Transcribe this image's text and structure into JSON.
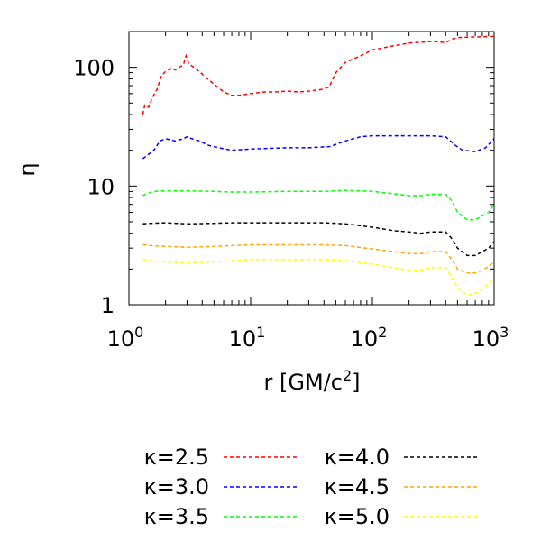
{
  "chart_data": {
    "type": "line",
    "xscale": "log",
    "yscale": "log",
    "xlim": [
      1,
      1000
    ],
    "ylim": [
      1,
      200
    ],
    "xlabel": "r [GM/c",
    "xlabel_sup": "2",
    "xlabel_end": "]",
    "ylabel": "η",
    "xticks": [
      {
        "value": 1,
        "base": "10",
        "exp": "0"
      },
      {
        "value": 10,
        "base": "10",
        "exp": "1"
      },
      {
        "value": 100,
        "base": "10",
        "exp": "2"
      },
      {
        "value": 1000,
        "base": "10",
        "exp": "3"
      }
    ],
    "yticks": [
      {
        "value": 1,
        "label": "1"
      },
      {
        "value": 10,
        "label": "10"
      },
      {
        "value": 100,
        "label": "100"
      }
    ],
    "legend_position": "bottom",
    "series": [
      {
        "name": "κ=2.5",
        "color": "#ff0000",
        "points": [
          [
            1.3,
            40
          ],
          [
            1.35,
            48
          ],
          [
            1.45,
            46
          ],
          [
            1.55,
            55
          ],
          [
            1.7,
            65
          ],
          [
            1.85,
            85
          ],
          [
            2.0,
            92
          ],
          [
            2.2,
            98
          ],
          [
            2.4,
            95
          ],
          [
            2.6,
            100
          ],
          [
            2.8,
            105
          ],
          [
            2.95,
            125
          ],
          [
            3.1,
            108
          ],
          [
            3.4,
            100
          ],
          [
            3.8,
            92
          ],
          [
            4.3,
            82
          ],
          [
            5,
            72
          ],
          [
            6,
            62
          ],
          [
            7,
            58
          ],
          [
            8,
            58
          ],
          [
            10,
            60
          ],
          [
            13,
            62
          ],
          [
            16,
            62
          ],
          [
            20,
            63
          ],
          [
            25,
            62
          ],
          [
            30,
            63
          ],
          [
            38,
            65
          ],
          [
            44,
            68
          ],
          [
            50,
            90
          ],
          [
            60,
            110
          ],
          [
            80,
            125
          ],
          [
            100,
            140
          ],
          [
            150,
            152
          ],
          [
            200,
            160
          ],
          [
            300,
            165
          ],
          [
            400,
            162
          ],
          [
            450,
            172
          ],
          [
            500,
            178
          ],
          [
            700,
            180
          ],
          [
            1000,
            182
          ]
        ]
      },
      {
        "name": "κ=3.0",
        "color": "#0000ff",
        "points": [
          [
            1.3,
            17
          ],
          [
            1.4,
            18
          ],
          [
            1.5,
            19
          ],
          [
            1.6,
            20
          ],
          [
            1.8,
            24
          ],
          [
            2.0,
            25
          ],
          [
            2.4,
            24
          ],
          [
            2.8,
            25
          ],
          [
            3.0,
            26
          ],
          [
            3.3,
            25
          ],
          [
            3.8,
            24
          ],
          [
            4.5,
            22
          ],
          [
            5.5,
            21
          ],
          [
            7,
            20
          ],
          [
            10,
            20.5
          ],
          [
            15,
            20.8
          ],
          [
            20,
            21
          ],
          [
            30,
            21
          ],
          [
            45,
            21.5
          ],
          [
            60,
            24
          ],
          [
            80,
            26
          ],
          [
            100,
            26.5
          ],
          [
            200,
            26.5
          ],
          [
            300,
            26.5
          ],
          [
            400,
            26
          ],
          [
            480,
            22
          ],
          [
            550,
            20
          ],
          [
            700,
            19.5
          ],
          [
            850,
            21
          ],
          [
            1000,
            25
          ]
        ]
      },
      {
        "name": "κ=3.5",
        "color": "#00ff00",
        "points": [
          [
            1.3,
            8.3
          ],
          [
            1.4,
            8.6
          ],
          [
            1.6,
            9.0
          ],
          [
            2,
            9.1
          ],
          [
            3,
            9.1
          ],
          [
            5,
            9.0
          ],
          [
            7,
            8.9
          ],
          [
            10,
            8.9
          ],
          [
            20,
            9.0
          ],
          [
            40,
            9.0
          ],
          [
            60,
            9.2
          ],
          [
            100,
            9.0
          ],
          [
            150,
            8.6
          ],
          [
            200,
            8.3
          ],
          [
            250,
            8.3
          ],
          [
            300,
            8.5
          ],
          [
            400,
            8.5
          ],
          [
            450,
            7.5
          ],
          [
            500,
            6.0
          ],
          [
            600,
            5.2
          ],
          [
            700,
            5.2
          ],
          [
            800,
            5.6
          ],
          [
            900,
            6.0
          ],
          [
            1000,
            7.0
          ]
        ]
      },
      {
        "name": "κ=4.0",
        "color": "#000000",
        "points": [
          [
            1.3,
            4.8
          ],
          [
            1.5,
            4.85
          ],
          [
            2,
            4.9
          ],
          [
            3,
            4.8
          ],
          [
            5,
            4.85
          ],
          [
            7,
            4.9
          ],
          [
            10,
            4.9
          ],
          [
            20,
            4.9
          ],
          [
            40,
            4.9
          ],
          [
            60,
            4.8
          ],
          [
            100,
            4.5
          ],
          [
            150,
            4.2
          ],
          [
            200,
            4.1
          ],
          [
            250,
            4.0
          ],
          [
            300,
            4.1
          ],
          [
            400,
            4.1
          ],
          [
            450,
            3.6
          ],
          [
            500,
            3.0
          ],
          [
            600,
            2.6
          ],
          [
            700,
            2.6
          ],
          [
            800,
            2.8
          ],
          [
            900,
            3.0
          ],
          [
            1000,
            3.4
          ]
        ]
      },
      {
        "name": "κ=4.5",
        "color": "#ffa500",
        "points": [
          [
            1.3,
            3.2
          ],
          [
            1.5,
            3.15
          ],
          [
            2,
            3.1
          ],
          [
            3,
            3.05
          ],
          [
            5,
            3.1
          ],
          [
            7,
            3.15
          ],
          [
            10,
            3.2
          ],
          [
            20,
            3.2
          ],
          [
            40,
            3.2
          ],
          [
            60,
            3.15
          ],
          [
            100,
            2.95
          ],
          [
            150,
            2.8
          ],
          [
            200,
            2.7
          ],
          [
            250,
            2.7
          ],
          [
            300,
            2.8
          ],
          [
            400,
            2.8
          ],
          [
            450,
            2.4
          ],
          [
            500,
            2.0
          ],
          [
            600,
            1.85
          ],
          [
            700,
            1.85
          ],
          [
            800,
            1.95
          ],
          [
            900,
            2.1
          ],
          [
            1000,
            2.3
          ]
        ]
      },
      {
        "name": "κ=5.0",
        "color": "#ffff00",
        "points": [
          [
            1.3,
            2.4
          ],
          [
            1.5,
            2.35
          ],
          [
            2,
            2.3
          ],
          [
            3,
            2.25
          ],
          [
            5,
            2.3
          ],
          [
            7,
            2.35
          ],
          [
            10,
            2.4
          ],
          [
            20,
            2.4
          ],
          [
            40,
            2.4
          ],
          [
            60,
            2.35
          ],
          [
            100,
            2.2
          ],
          [
            150,
            2.05
          ],
          [
            200,
            1.95
          ],
          [
            250,
            1.95
          ],
          [
            300,
            2.05
          ],
          [
            400,
            2.05
          ],
          [
            450,
            1.7
          ],
          [
            500,
            1.4
          ],
          [
            600,
            1.2
          ],
          [
            700,
            1.25
          ],
          [
            800,
            1.35
          ],
          [
            900,
            1.5
          ],
          [
            1000,
            1.7
          ]
        ]
      }
    ]
  }
}
